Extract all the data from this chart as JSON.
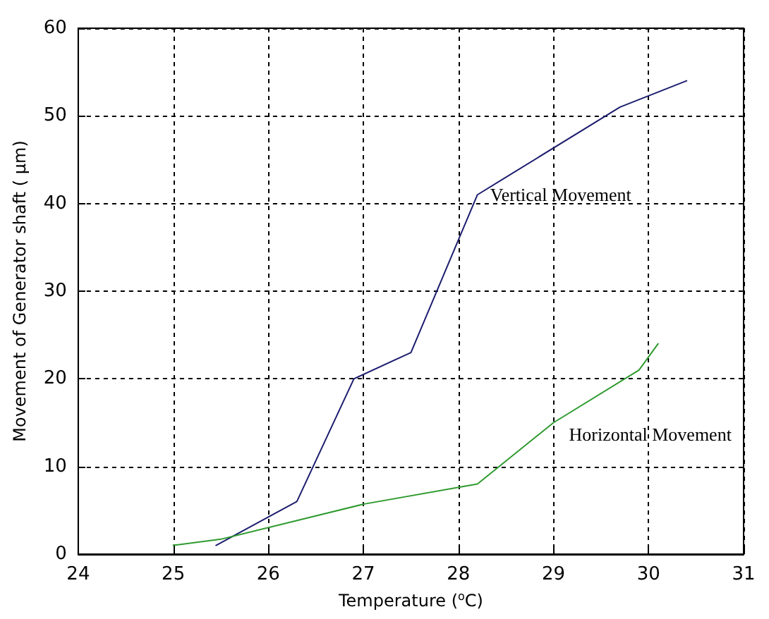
{
  "chart_data": {
    "type": "line",
    "xlabel": "Temperature ($^{o}$C)",
    "ylabel": "Movement of Generator shaft ( µm)",
    "xlim": [
      24,
      31
    ],
    "xticks": [
      24,
      25,
      26,
      27,
      28,
      29,
      30,
      31
    ],
    "ylim": [
      0,
      60
    ],
    "yticks": [
      0,
      10,
      20,
      30,
      40,
      50,
      60
    ],
    "grid": true,
    "legend": false,
    "marker": "none",
    "line_style": "solid",
    "series": [
      {
        "name": "Vertical Movement",
        "color": "#1c1c6e",
        "x": [
          25.45,
          26.3,
          26.9,
          27.5,
          28.2,
          29.7,
          30.4
        ],
        "values": [
          1,
          6,
          20,
          23,
          41,
          51,
          54
        ]
      },
      {
        "name": "Horizontal Movement",
        "color": "#2e9a2e",
        "x": [
          25,
          25.5,
          27,
          28.2,
          29,
          29.9,
          30.1
        ],
        "values": [
          1,
          1.7,
          5.7,
          8,
          15,
          21,
          24
        ]
      }
    ]
  }
}
